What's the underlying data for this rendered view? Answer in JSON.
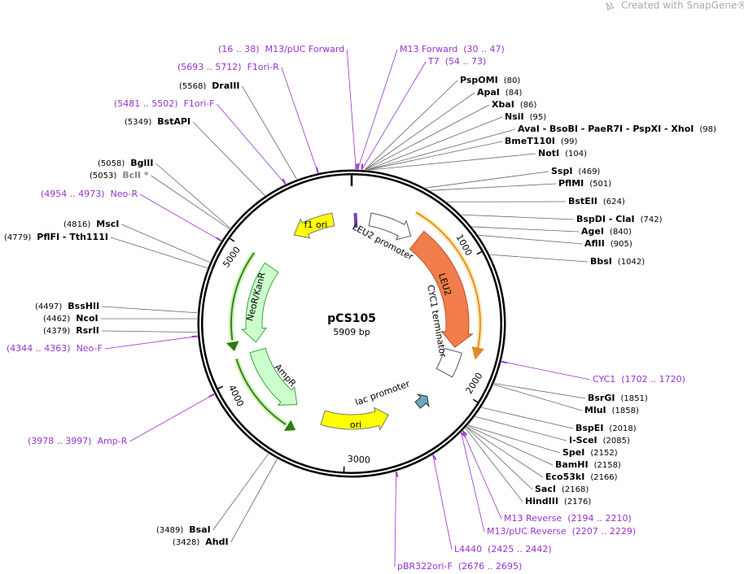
{
  "watermark": "Created with SnapGene®",
  "plasmid": {
    "name": "pCS105",
    "size": "5909 bp"
  },
  "ticks": [
    "1000",
    "2000",
    "3000",
    "4000",
    "5000"
  ],
  "features": [
    {
      "name": "f1 ori"
    },
    {
      "name": "LEU2 promoter"
    },
    {
      "name": "LEU2"
    },
    {
      "name": "CYC1 terminator"
    },
    {
      "name": "lac promoter"
    },
    {
      "name": "ori"
    },
    {
      "name": "AmpR"
    },
    {
      "name": "NeoR/KanR"
    }
  ],
  "enzymes": [
    {
      "name": "PspOMI",
      "site": "(80)"
    },
    {
      "name": "ApaI",
      "site": "(84)"
    },
    {
      "name": "XbaI",
      "site": "(86)"
    },
    {
      "name": "NsiI",
      "site": "(95)"
    },
    {
      "name": "AvaI - BsoBI - PaeR7I - PspXI - XhoI",
      "site": "(98)"
    },
    {
      "name": "BmeT110I",
      "site": "(99)"
    },
    {
      "name": "NotI",
      "site": "(104)"
    },
    {
      "name": "SspI",
      "site": "(469)"
    },
    {
      "name": "PflMI",
      "site": "(501)"
    },
    {
      "name": "BstEII",
      "site": "(624)"
    },
    {
      "name": "BspDI - ClaI",
      "site": "(742)"
    },
    {
      "name": "AgeI",
      "site": "(840)"
    },
    {
      "name": "AflII",
      "site": "(905)"
    },
    {
      "name": "BbsI",
      "site": "(1042)"
    },
    {
      "name": "BsrGI",
      "site": "(1851)"
    },
    {
      "name": "MluI",
      "site": "(1858)"
    },
    {
      "name": "BspEI",
      "site": "(2018)"
    },
    {
      "name": "I-SceI",
      "site": "(2085)"
    },
    {
      "name": "SpeI",
      "site": "(2152)"
    },
    {
      "name": "BamHI",
      "site": "(2158)"
    },
    {
      "name": "Eco53kI",
      "site": "(2166)"
    },
    {
      "name": "SacI",
      "site": "(2168)"
    },
    {
      "name": "HindIII",
      "site": "(2176)"
    },
    {
      "name": "DraIII",
      "site": "(5568)"
    },
    {
      "name": "BstAPI",
      "site": "(5349)"
    },
    {
      "name": "BglII",
      "site": "(5058)"
    },
    {
      "name": "BclI *",
      "site": "(5053)"
    },
    {
      "name": "MscI",
      "site": "(4816)"
    },
    {
      "name": "PflFI - Tth111I",
      "site": "(4779)"
    },
    {
      "name": "BssHII",
      "site": "(4497)"
    },
    {
      "name": "NcoI",
      "site": "(4462)"
    },
    {
      "name": "RsrII",
      "site": "(4379)"
    },
    {
      "name": "BsaI",
      "site": "(3489)"
    },
    {
      "name": "AhdI",
      "site": "(3428)"
    }
  ],
  "primers": [
    {
      "name": "M13 Forward",
      "range": "(30 .. 47)"
    },
    {
      "name": "T7",
      "range": "(54 .. 73)"
    },
    {
      "name": "CYC1",
      "range": "(1702 .. 1720)"
    },
    {
      "name": "M13 Reverse",
      "range": "(2194 .. 2210)"
    },
    {
      "name": "M13/pUC Reverse",
      "range": "(2207 .. 2229)"
    },
    {
      "name": "L4440",
      "range": "(2425 .. 2442)"
    },
    {
      "name": "pBR322ori-F",
      "range": "(2676 .. 2695)"
    },
    {
      "name": "M13/pUC Forward",
      "range": "(16 .. 38)"
    },
    {
      "name": "F1ori-R",
      "range": "(5693 .. 5712)"
    },
    {
      "name": "F1ori-F",
      "range": "(5481 .. 5502)"
    },
    {
      "name": "Neo-R",
      "range": "(4954 .. 4973)"
    },
    {
      "name": "Neo-F",
      "range": "(4344 .. 4363)"
    },
    {
      "name": "Amp-R",
      "range": "(3978 .. 3997)"
    }
  ]
}
